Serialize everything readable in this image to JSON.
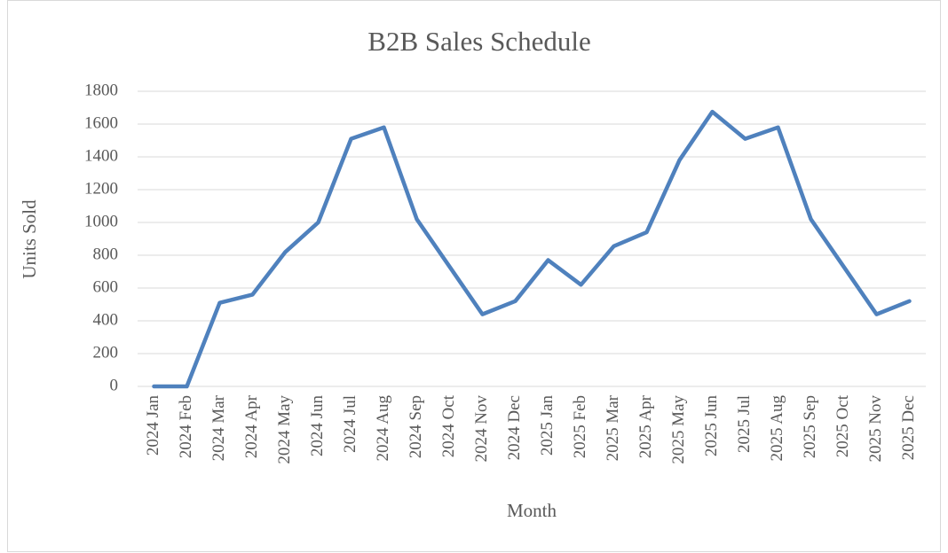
{
  "chart_data": {
    "type": "line",
    "title": "B2B Sales Schedule",
    "x_label": "Month",
    "y_label": "Units Sold",
    "categories": [
      "2024 Jan",
      "2024 Feb",
      "2024 Mar",
      "2024 Apr",
      "2024 May",
      "2024 Jun",
      "2024 Jul",
      "2024 Aug",
      "2024 Sep",
      "2024 Oct",
      "2024 Nov",
      "2024 Dec",
      "2025 Jan",
      "2025 Feb",
      "2025 Mar",
      "2025 Apr",
      "2025 May",
      "2025 Jun",
      "2025 Jul",
      "2025 Aug",
      "2025 Sep",
      "2025 Oct",
      "2025 Nov",
      "2025 Dec"
    ],
    "series": [
      {
        "name": "Units Sold",
        "color": "#4f81bd",
        "values": [
          0,
          0,
          510,
          560,
          820,
          1000,
          1510,
          1580,
          1020,
          730,
          440,
          520,
          770,
          620,
          855,
          940,
          1380,
          1675,
          1510,
          1580,
          1020,
          730,
          440,
          520
        ]
      }
    ],
    "ylim": [
      0,
      1800
    ],
    "yticks": [
      0,
      200,
      400,
      600,
      800,
      1000,
      1200,
      1400,
      1600,
      1800
    ],
    "grid": true
  }
}
